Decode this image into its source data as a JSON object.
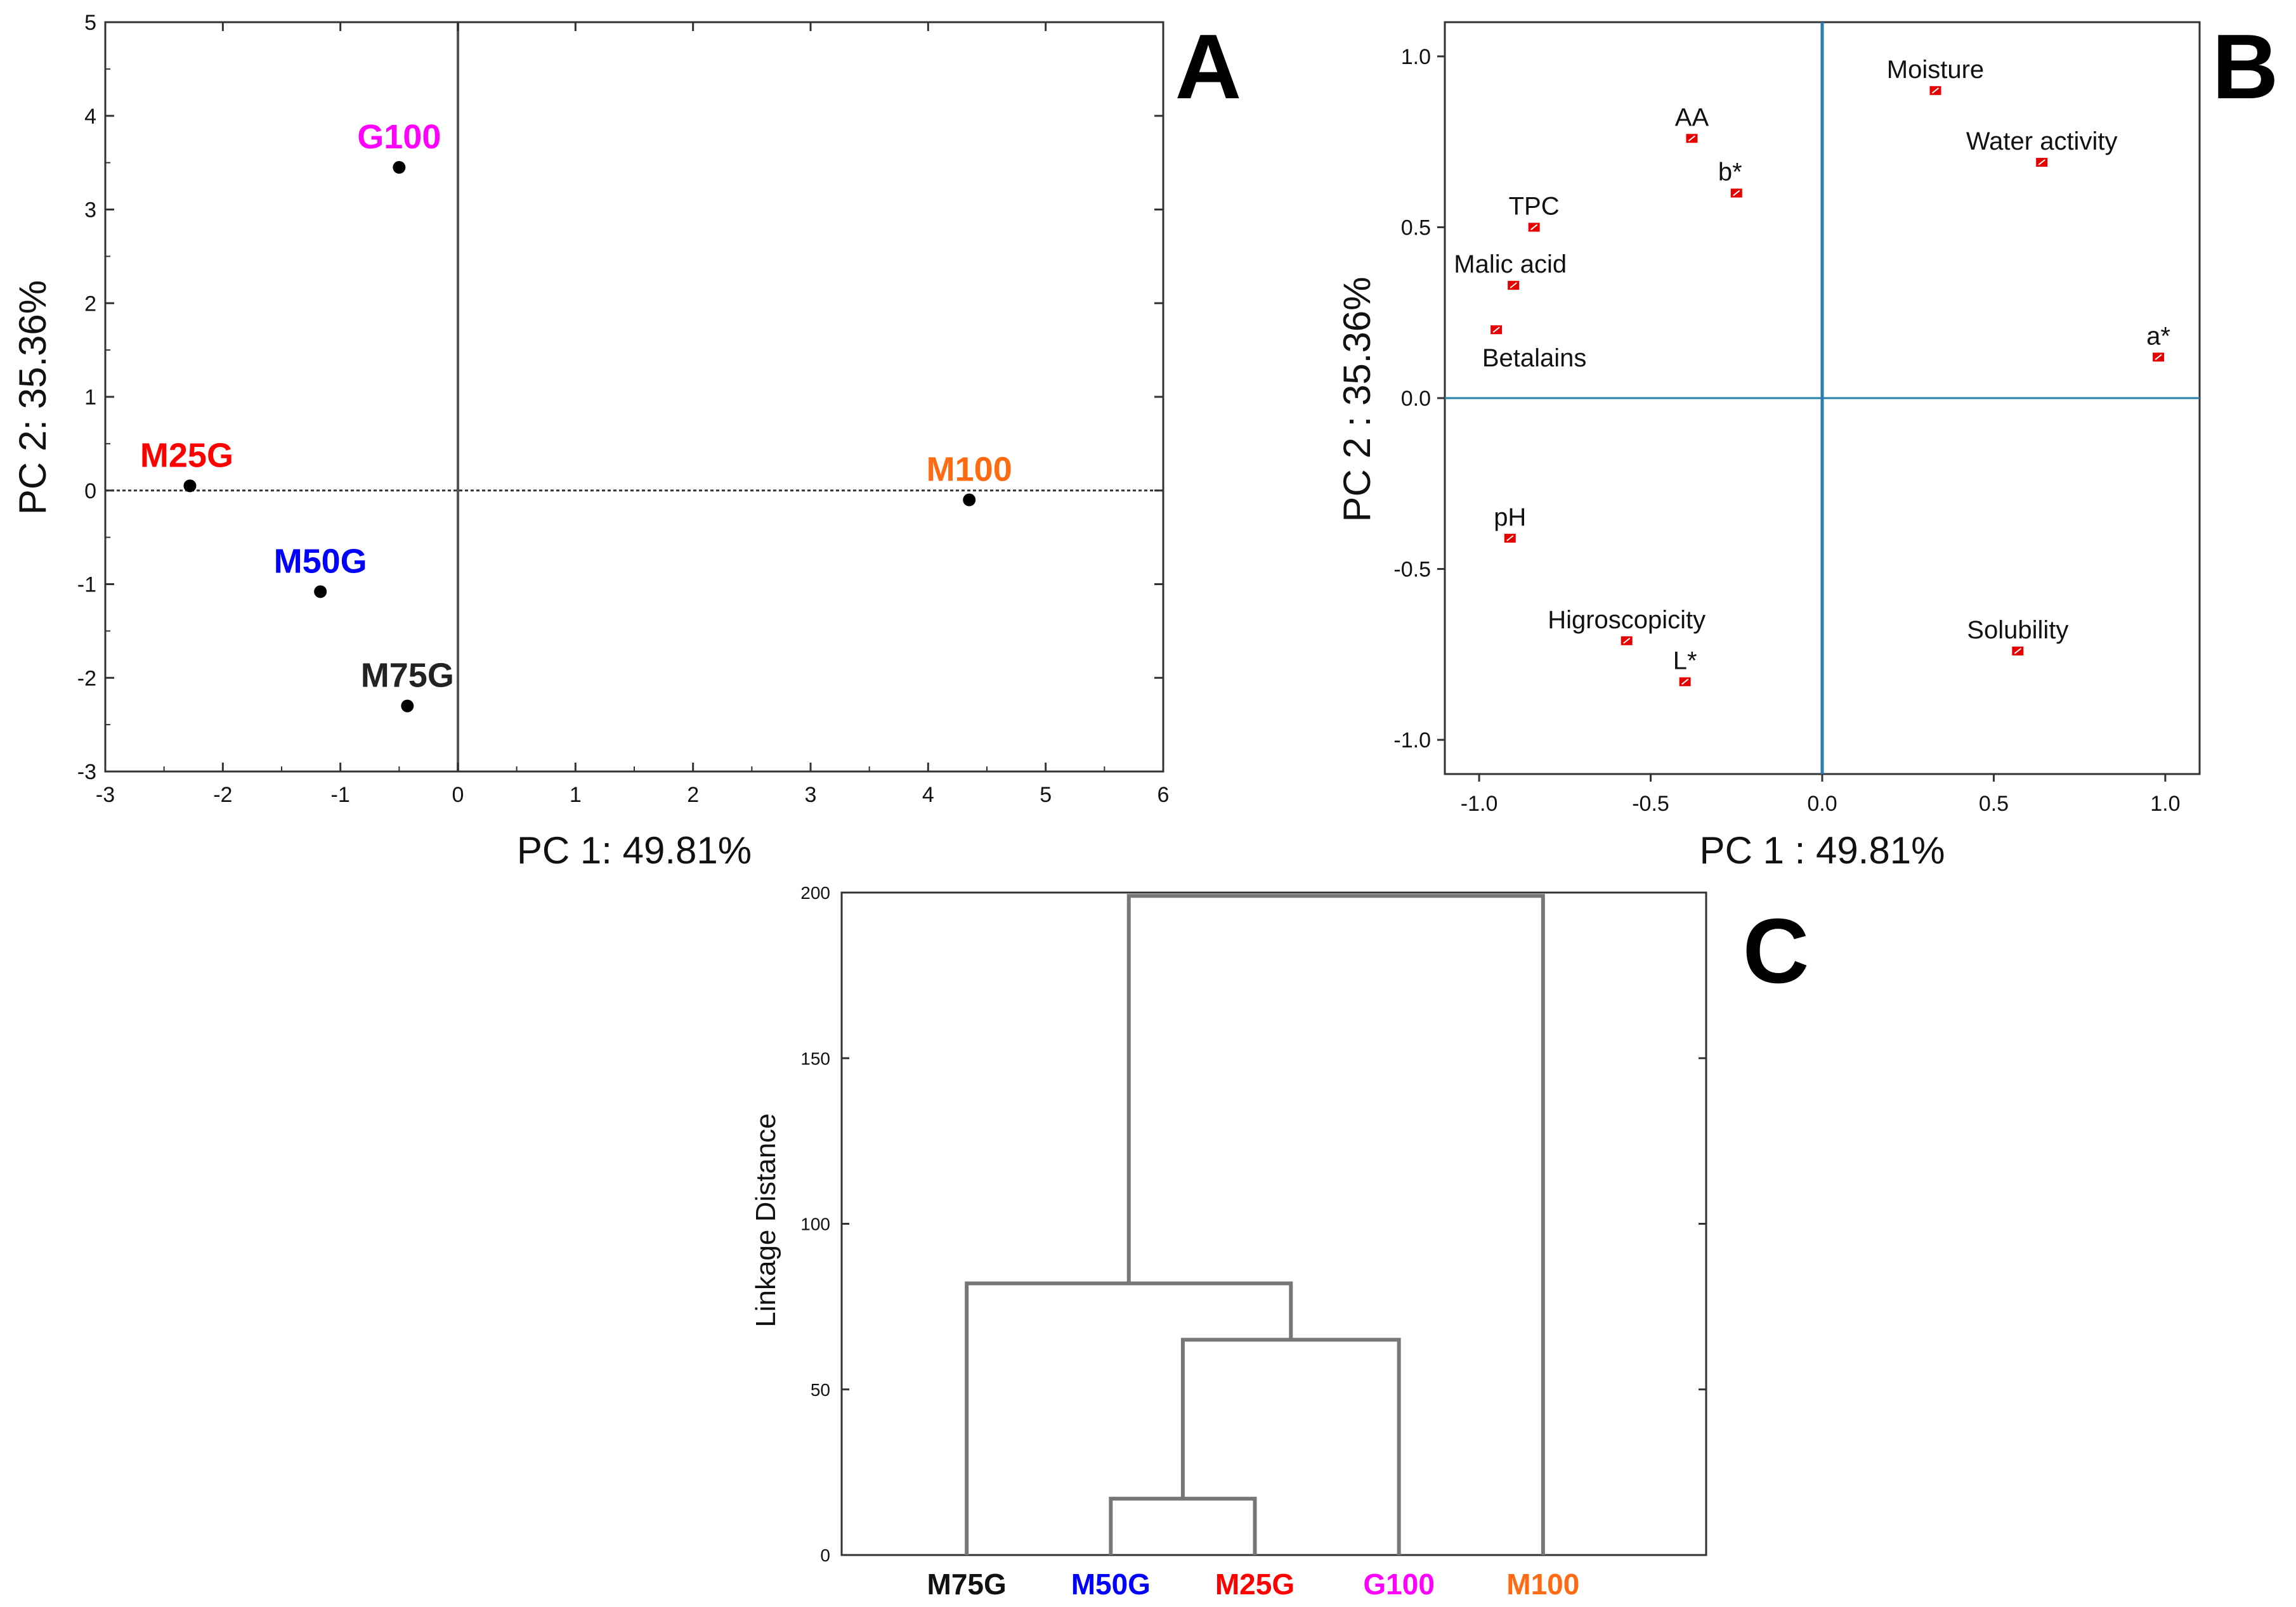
{
  "chart_data": [
    {
      "panel": "A",
      "type": "scatter",
      "panel_label": "A",
      "xlabel": "PC 1: 49.81%",
      "ylabel": "PC 2: 35.36%",
      "xlim": [
        -3,
        6
      ],
      "ylim": [
        -3,
        5
      ],
      "xticks": [
        "-3",
        "-2",
        "-1",
        "0",
        "1",
        "2",
        "3",
        "4",
        "5",
        "6"
      ],
      "yticks": [
        "-3",
        "-2",
        "-1",
        "0",
        "1",
        "2",
        "3",
        "4",
        "5"
      ],
      "points": [
        {
          "label": "G100",
          "x": -0.5,
          "y": 3.45,
          "color": "#ff00ff"
        },
        {
          "label": "M25G",
          "x": -2.28,
          "y": 0.05,
          "color": "#ff0000"
        },
        {
          "label": "M50G",
          "x": -1.17,
          "y": -1.08,
          "color": "#0000ff"
        },
        {
          "label": "M75G",
          "x": -0.43,
          "y": -2.3,
          "color": "#222222"
        },
        {
          "label": "M100",
          "x": 4.35,
          "y": -0.1,
          "color": "#ff6a13"
        }
      ]
    },
    {
      "panel": "B",
      "type": "scatter",
      "panel_label": "B",
      "xlabel": "PC 1 : 49.81%",
      "ylabel": "PC 2 : 35.36%",
      "xlim": [
        -1.1,
        1.1
      ],
      "ylim": [
        -1.1,
        1.1
      ],
      "xticks": [
        "-1.0",
        "-0.5",
        "0.0",
        "0.5",
        "1.0"
      ],
      "yticks": [
        "-1.0",
        "-0.5",
        "0.0",
        "0.5",
        "1.0"
      ],
      "points": [
        {
          "label": "Moisture",
          "x": 0.33,
          "y": 0.9
        },
        {
          "label": "AA",
          "x": -0.38,
          "y": 0.76
        },
        {
          "label": "Water activity",
          "x": 0.64,
          "y": 0.69
        },
        {
          "label": "b*",
          "x": -0.25,
          "y": 0.6
        },
        {
          "label": "TPC",
          "x": -0.84,
          "y": 0.5
        },
        {
          "label": "Malic acid",
          "x": -0.9,
          "y": 0.33
        },
        {
          "label": "Betalains",
          "x": -0.95,
          "y": 0.2
        },
        {
          "label": "a*",
          "x": 0.98,
          "y": 0.12
        },
        {
          "label": "pH",
          "x": -0.91,
          "y": -0.41
        },
        {
          "label": "Higroscopicity",
          "x": -0.57,
          "y": -0.71
        },
        {
          "label": "Solubility",
          "x": 0.57,
          "y": -0.74
        },
        {
          "label": "L*",
          "x": -0.4,
          "y": -0.83
        }
      ]
    },
    {
      "panel": "C",
      "type": "dendrogram",
      "panel_label": "C",
      "ylabel": "Linkage Distance",
      "ylim": [
        0,
        200
      ],
      "yticks": [
        "0",
        "50",
        "100",
        "150",
        "200"
      ],
      "leaves": [
        {
          "label": "M75G",
          "color": "#111111"
        },
        {
          "label": "M50G",
          "color": "#0000ff"
        },
        {
          "label": "M25G",
          "color": "#ff0000"
        },
        {
          "label": "G100",
          "color": "#ff00ff"
        },
        {
          "label": "M100",
          "color": "#ff6a13"
        }
      ],
      "merges": [
        {
          "left": "M50G",
          "right": "M25G",
          "height": 17
        },
        {
          "left": "M50G+M25G",
          "right": "G100",
          "height": 65
        },
        {
          "left": "M75G",
          "right": "M50G+M25G+G100",
          "height": 82
        },
        {
          "left": "M75G+M50G+M25G+G100",
          "right": "M100",
          "height": 199
        }
      ]
    }
  ]
}
